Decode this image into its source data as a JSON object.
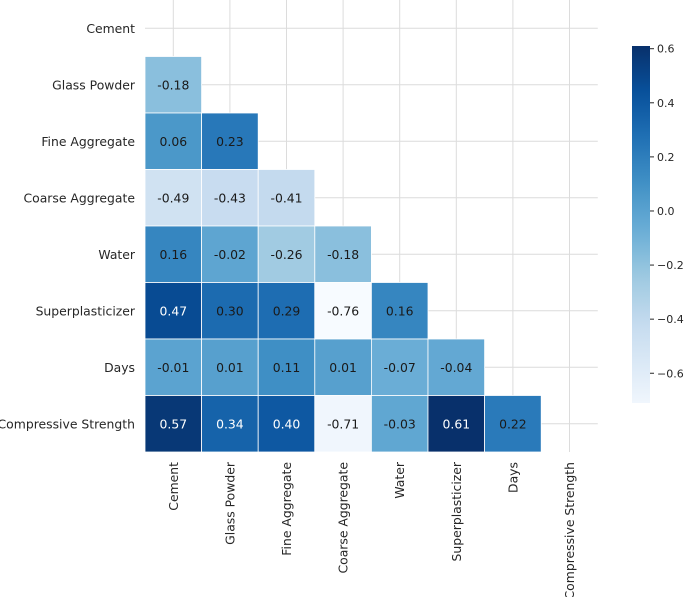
{
  "chart_data": {
    "type": "heatmap",
    "title": "",
    "xlabel": "",
    "ylabel": "",
    "mask": "upper-triangle-and-diagonal",
    "grid": true,
    "colormap": "Blues",
    "cmap_stops": [
      "#f7fbff",
      "#deebf7",
      "#c6dbef",
      "#9ecae1",
      "#6baed6",
      "#4292c6",
      "#2171b5",
      "#08519c",
      "#08306b"
    ],
    "vmin": -0.76,
    "vmax": 0.61,
    "row_labels": [
      "Cement",
      "Glass Powder",
      "Fine Aggregate",
      "Coarse Aggregate",
      "Water",
      "Superplasticizer",
      "Days",
      "Compressive Strength"
    ],
    "col_labels": [
      "Cement",
      "Glass Powder",
      "Fine Aggregate",
      "Coarse Aggregate",
      "Water",
      "Superplasticizer",
      "Days",
      "Compressive Strength"
    ],
    "values": [
      [
        null,
        null,
        null,
        null,
        null,
        null,
        null,
        null
      ],
      [
        -0.18,
        null,
        null,
        null,
        null,
        null,
        null,
        null
      ],
      [
        0.06,
        0.23,
        null,
        null,
        null,
        null,
        null,
        null
      ],
      [
        -0.49,
        -0.43,
        -0.41,
        null,
        null,
        null,
        null,
        null
      ],
      [
        0.16,
        -0.02,
        -0.26,
        -0.18,
        null,
        null,
        null,
        null
      ],
      [
        0.47,
        0.3,
        0.29,
        -0.76,
        0.16,
        null,
        null,
        null
      ],
      [
        -0.01,
        0.01,
        0.11,
        0.01,
        -0.07,
        -0.04,
        null,
        null
      ],
      [
        0.57,
        0.34,
        0.4,
        -0.71,
        -0.03,
        0.61,
        0.22,
        null
      ]
    ],
    "value_labels": [
      [],
      [
        "-0.18"
      ],
      [
        "0.06",
        "0.23"
      ],
      [
        "-0.49",
        "-0.43",
        "-0.41"
      ],
      [
        "0.16",
        "-0.02",
        "-0.26",
        "-0.18"
      ],
      [
        "0.47",
        "0.30",
        "0.29",
        "-0.76",
        "0.16"
      ],
      [
        "-0.01",
        "0.01",
        "0.11",
        "0.01",
        "-0.07",
        "-0.04"
      ],
      [
        "0.57",
        "0.34",
        "0.40",
        "-0.71",
        "-0.03",
        "0.61",
        "0.22"
      ]
    ],
    "colorbar": {
      "ticks": [
        0.6,
        0.4,
        0.2,
        0.0,
        -0.2,
        -0.4,
        -0.6
      ],
      "tick_labels": [
        "0.6",
        "0.4",
        "0.2",
        "0.0",
        "−0.2",
        "−0.4",
        "−0.6"
      ]
    }
  }
}
